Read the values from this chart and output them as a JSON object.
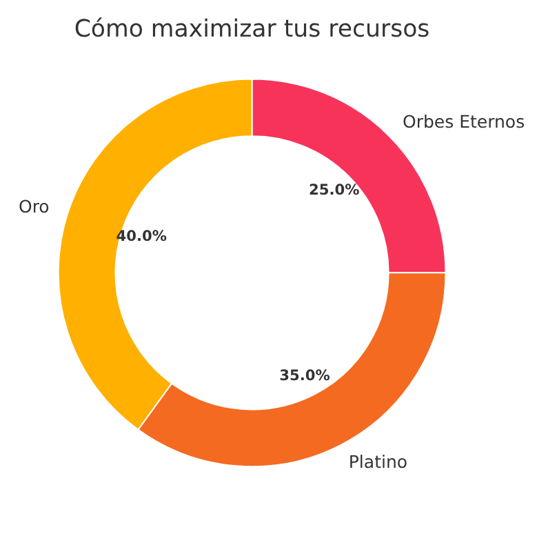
{
  "chart_data": {
    "type": "donut",
    "title": "Cómo maximizar tus recursos",
    "categories": [
      "Orbes Eternos",
      "Platino",
      "Oro"
    ],
    "values": [
      25,
      35,
      40
    ],
    "colors": [
      "#f7335a",
      "#f46a21",
      "#ffb000"
    ],
    "value_labels": [
      "25.0%",
      "35.0%",
      "40.0%"
    ],
    "legend": false
  }
}
